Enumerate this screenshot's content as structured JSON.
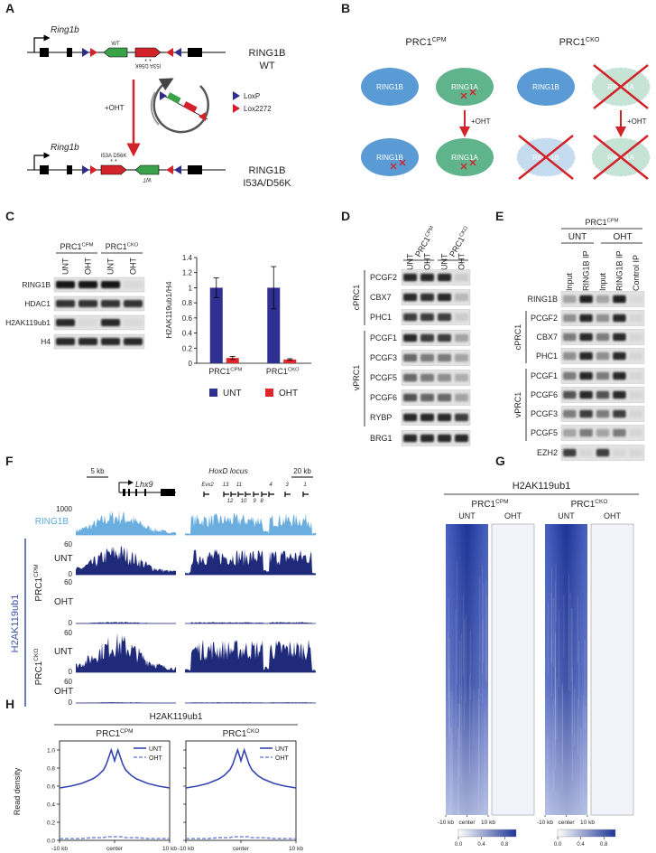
{
  "A": {
    "letter": "A",
    "gene_top": "Ring1b",
    "wt": "WT",
    "mut_flipped": "I53A D56K",
    "stars": "* *",
    "name_top": "RING1B",
    "sub_top": "WT",
    "treatment": "+OHT",
    "loxp": "LoxP",
    "lox2272": "Lox2272",
    "gene_bottom": "Ring1b",
    "mut": "I53A D56K",
    "wt_flipped": "WT",
    "name_bottom": "RING1B",
    "sub_bottom": "I53A/D56K"
  },
  "B": {
    "letter": "B",
    "cpm": {
      "name": "PRC1",
      "sup": "CPM"
    },
    "cko": {
      "name": "PRC1",
      "sup": "CKO"
    },
    "ring1b": "RING1B",
    "ring1a": "RING1A",
    "treatment": "+OHT"
  },
  "C": {
    "letter": "C",
    "groups": [
      {
        "name": "PRC1",
        "sup": "CPM"
      },
      {
        "name": "PRC1",
        "sup": "CKO"
      }
    ],
    "lanes": [
      "UNT",
      "OHT",
      "UNT",
      "OHT"
    ],
    "rows": [
      "RING1B",
      "HDAC1",
      "H2AK119ub1",
      "H4"
    ],
    "chart": {
      "type": "bar",
      "y_label": "H2AK119ub1/H4",
      "categories": [
        {
          "name": "PRC1",
          "sup": "CPM"
        },
        {
          "name": "PRC1",
          "sup": "CKO"
        }
      ],
      "series": [
        {
          "name": "UNT",
          "color": "#2e3192",
          "values": [
            1,
            1
          ],
          "errors": [
            0.13,
            0.28
          ]
        },
        {
          "name": "OHT",
          "color": "#e0262b",
          "values": [
            0.07,
            0.05
          ],
          "errors": [
            0.02,
            0.01
          ]
        }
      ],
      "ylim": [
        0,
        1.4
      ],
      "yticks": [
        0,
        0.2,
        0.4,
        0.6,
        0.8,
        1,
        1.2,
        1.4
      ]
    }
  },
  "D": {
    "letter": "D",
    "groups": [
      {
        "name": "PRC1",
        "sup": "CPM"
      },
      {
        "name": "PRC1",
        "sup": "CKO"
      }
    ],
    "lanes": [
      "UNT",
      "OHT",
      "UNT",
      "OHT"
    ],
    "class_c": "cPRC1",
    "rows_c": [
      "PCGF2",
      "CBX7",
      "PHC1"
    ],
    "class_v": "vPRC1",
    "rows_v": [
      "PCGF1",
      "PCGF3",
      "PCGF5",
      "PCGF6",
      "RYBP"
    ],
    "control": "BRG1"
  },
  "E": {
    "letter": "E",
    "group": {
      "name": "PRC1",
      "sup": "CPM"
    },
    "conditions": [
      "UNT",
      "OHT"
    ],
    "lanes": [
      "Input",
      "RING1B IP",
      "Input",
      "RING1B IP",
      "Control IP"
    ],
    "top_row": "RING1B",
    "class_c": "cPRC1",
    "rows_c": [
      "PCGF2",
      "CBX7",
      "PHC1"
    ],
    "class_v": "vPRC1",
    "rows_v": [
      "PCGF1",
      "PCGF6",
      "PCGF3",
      "PCGF5"
    ],
    "control": "EZH2"
  },
  "F": {
    "letter": "F",
    "scale_left": "5 kb",
    "gene_left": "Lhx9",
    "locus": "HoxD locus",
    "scale_right": "20 kb",
    "hox_genes_top": [
      "Evx2",
      "13",
      "11",
      "4",
      "3",
      "1"
    ],
    "hox_genes_bottom": [
      "12",
      "10",
      "9",
      "8"
    ],
    "ring1b_track": {
      "name": "RING1B",
      "ymax": 1000
    },
    "mark": "H2AK119ub1",
    "groups": [
      {
        "name": "PRC1",
        "sup": "CPM",
        "tracks": [
          {
            "condition": "UNT",
            "ymax": 60,
            "ymin": 0
          },
          {
            "condition": "OHT",
            "ymax": 60,
            "ymin": 0
          }
        ]
      },
      {
        "name": "PRC1",
        "sup": "CKO",
        "tracks": [
          {
            "condition": "UNT",
            "ymax": 60,
            "ymin": 0
          },
          {
            "condition": "OHT",
            "ymax": 60,
            "ymin": 0
          }
        ]
      }
    ]
  },
  "G": {
    "letter": "G",
    "title": "H2AK119ub1",
    "groups": [
      {
        "name": "PRC1",
        "sup": "CPM"
      },
      {
        "name": "PRC1",
        "sup": "CKO"
      }
    ],
    "conditions": [
      "UNT",
      "OHT"
    ],
    "xlim": [
      -10,
      10
    ],
    "xticks": [
      {
        "value": -10,
        "label": "-10 kb"
      },
      {
        "value": 0,
        "label": "center"
      },
      {
        "value": 10,
        "label": "10 kb"
      }
    ],
    "colorbar": {
      "lim": [
        0,
        1
      ],
      "ticks": [
        {
          "value": 0,
          "label": "0.0"
        },
        0.4,
        0.8
      ]
    }
  },
  "H": {
    "letter": "H",
    "title": "H2AK119ub1",
    "y_label": "Read density",
    "plots": [
      {
        "type": "line",
        "title": {
          "name": "PRC1",
          "sup": "CPM"
        },
        "x": [
          -10,
          -8,
          -6,
          -4,
          -3,
          -2,
          -1.5,
          -1,
          -0.6,
          -0.3,
          0,
          0.3,
          0.6,
          1,
          1.5,
          2,
          3,
          4,
          6,
          8,
          10
        ],
        "series": [
          {
            "name": "UNT",
            "color": "#3546b0",
            "linestyle": "solid",
            "values": [
              0.58,
              0.6,
              0.63,
              0.68,
              0.72,
              0.78,
              0.84,
              0.93,
              1.0,
              0.94,
              0.88,
              0.94,
              1.0,
              0.93,
              0.84,
              0.78,
              0.72,
              0.68,
              0.63,
              0.6,
              0.58
            ]
          },
          {
            "name": "OHT",
            "color": "#7b8ade",
            "linestyle": "dashed",
            "values": [
              0.02,
              0.02,
              0.02,
              0.03,
              0.03,
              0.03,
              0.04,
              0.04,
              0.04,
              0.04,
              0.04,
              0.04,
              0.04,
              0.04,
              0.04,
              0.03,
              0.03,
              0.03,
              0.02,
              0.02,
              0.02
            ]
          }
        ],
        "xlim": [
          -10,
          10
        ],
        "xticks": [
          {
            "value": -10,
            "label": "-10 kb"
          },
          {
            "value": 0,
            "label": "center"
          },
          {
            "value": 10,
            "label": "10 kb"
          }
        ],
        "ylim": [
          0,
          1.1
        ],
        "yticks": [
          {
            "value": 0,
            "label": "0.0"
          },
          0.2,
          0.4,
          0.6,
          0.8,
          {
            "value": 1,
            "label": "1.0"
          }
        ]
      },
      {
        "type": "line",
        "title": {
          "name": "PRC1",
          "sup": "CKO"
        },
        "x": [
          -10,
          -8,
          -6,
          -4,
          -3,
          -2,
          -1.5,
          -1,
          -0.6,
          -0.3,
          0,
          0.3,
          0.6,
          1,
          1.5,
          2,
          3,
          4,
          6,
          8,
          10
        ],
        "series": [
          {
            "name": "UNT",
            "color": "#3546b0",
            "linestyle": "solid",
            "values": [
              0.58,
              0.6,
              0.63,
              0.68,
              0.72,
              0.78,
              0.84,
              0.93,
              1.0,
              0.94,
              0.88,
              0.94,
              1.0,
              0.93,
              0.84,
              0.78,
              0.72,
              0.68,
              0.63,
              0.6,
              0.58
            ]
          },
          {
            "name": "OHT",
            "color": "#7b8ade",
            "linestyle": "dashed",
            "values": [
              0.02,
              0.02,
              0.02,
              0.03,
              0.03,
              0.03,
              0.04,
              0.04,
              0.04,
              0.04,
              0.04,
              0.04,
              0.04,
              0.04,
              0.04,
              0.03,
              0.03,
              0.03,
              0.02,
              0.02,
              0.02
            ]
          }
        ],
        "xlim": [
          -10,
          10
        ],
        "xticks": [
          {
            "value": -10,
            "label": "-10 kb"
          },
          {
            "value": 0,
            "label": "center"
          },
          {
            "value": 10,
            "label": "10 kb"
          }
        ],
        "ylim": [
          0,
          1.1
        ],
        "yticks": [
          {
            "value": 0,
            "label": "0.0"
          },
          0.2,
          0.4,
          0.6,
          0.8,
          {
            "value": 1,
            "label": "1.0"
          }
        ]
      }
    ]
  }
}
